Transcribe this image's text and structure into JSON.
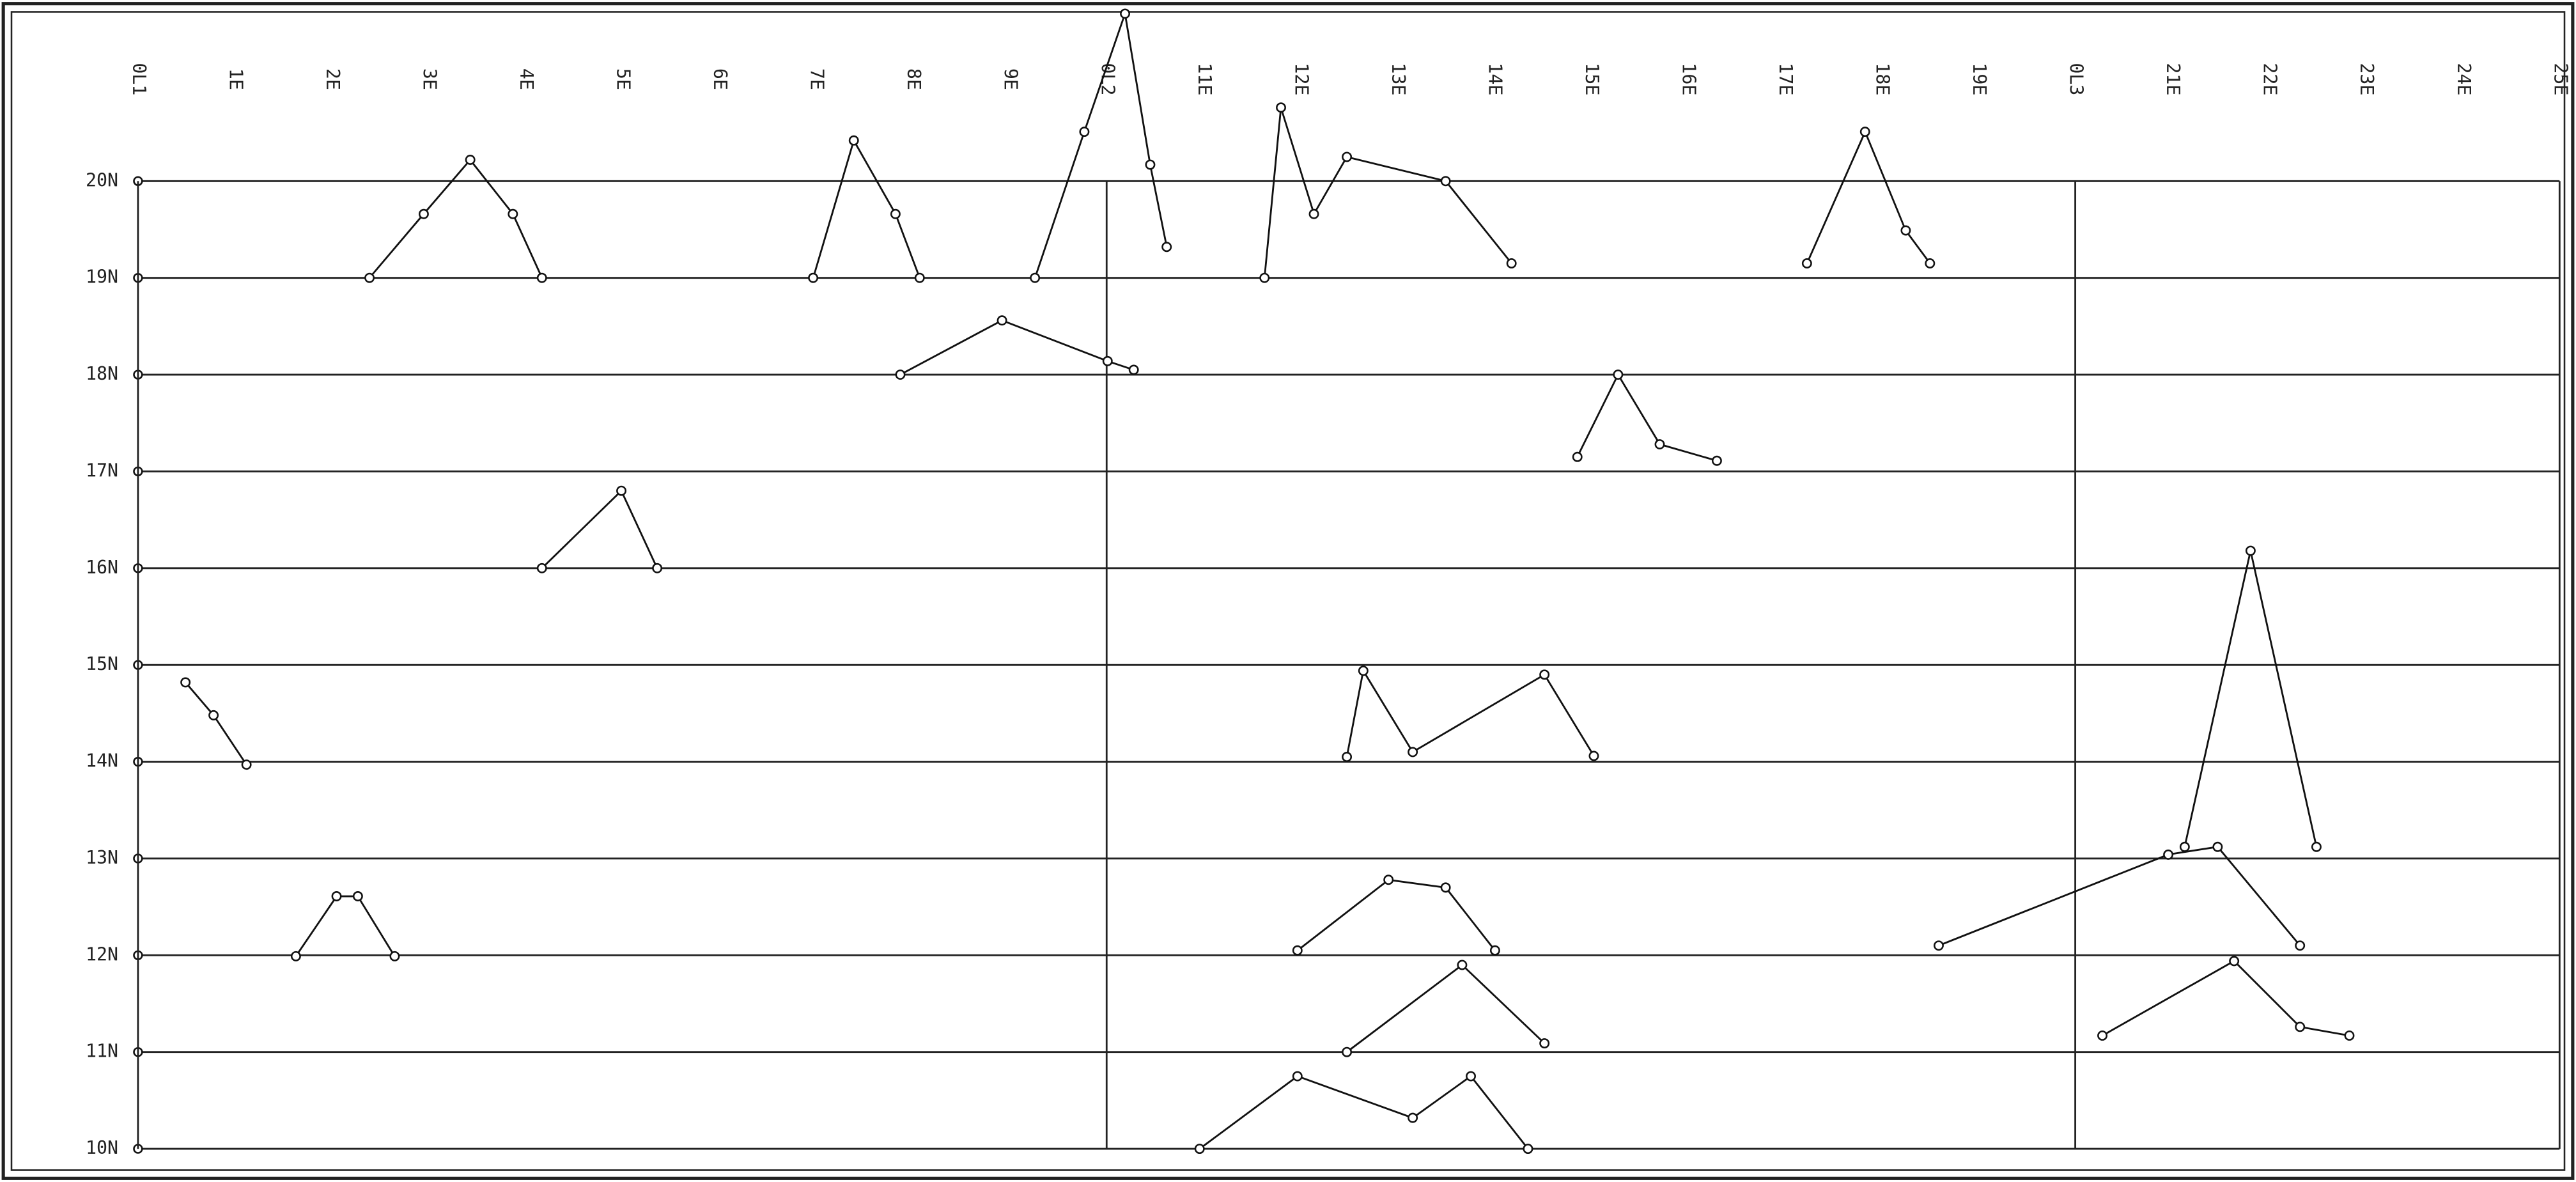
{
  "chart_data": {
    "type": "line",
    "color": "#111111",
    "xlim": [
      0,
      25
    ],
    "ylim": [
      10,
      21.8
    ],
    "xticks": [
      {
        "value": 0,
        "label": "0L1"
      },
      {
        "value": 1,
        "label": "1E"
      },
      {
        "value": 2,
        "label": "2E"
      },
      {
        "value": 3,
        "label": "3E"
      },
      {
        "value": 4,
        "label": "4E"
      },
      {
        "value": 5,
        "label": "5E"
      },
      {
        "value": 6,
        "label": "6E"
      },
      {
        "value": 7,
        "label": "7E"
      },
      {
        "value": 8,
        "label": "8E"
      },
      {
        "value": 9,
        "label": "9E"
      },
      {
        "value": 10,
        "label": "0L2"
      },
      {
        "value": 11,
        "label": "11E"
      },
      {
        "value": 12,
        "label": "12E"
      },
      {
        "value": 13,
        "label": "13E"
      },
      {
        "value": 14,
        "label": "14E"
      },
      {
        "value": 15,
        "label": "15E"
      },
      {
        "value": 16,
        "label": "16E"
      },
      {
        "value": 17,
        "label": "17E"
      },
      {
        "value": 18,
        "label": "18E"
      },
      {
        "value": 19,
        "label": "19E"
      },
      {
        "value": 20,
        "label": "0L3"
      },
      {
        "value": 21,
        "label": "21E"
      },
      {
        "value": 22,
        "label": "22E"
      },
      {
        "value": 23,
        "label": "23E"
      },
      {
        "value": 24,
        "label": "24E"
      },
      {
        "value": 25,
        "label": "25E"
      }
    ],
    "yticks": [
      {
        "value": 10,
        "label": "10N"
      },
      {
        "value": 11,
        "label": "11N"
      },
      {
        "value": 12,
        "label": "12N"
      },
      {
        "value": 13,
        "label": "13N"
      },
      {
        "value": 14,
        "label": "14N"
      },
      {
        "value": 15,
        "label": "15N"
      },
      {
        "value": 16,
        "label": "16N"
      },
      {
        "value": 17,
        "label": "17N"
      },
      {
        "value": 18,
        "label": "18N"
      },
      {
        "value": 19,
        "label": "19N"
      },
      {
        "value": 20,
        "label": "20N"
      }
    ],
    "series": [
      {
        "x": [
          2.39,
          2.95,
          3.43,
          3.87,
          4.17
        ],
        "values": [
          19.0,
          19.66,
          20.22,
          19.66,
          19.0
        ]
      },
      {
        "x": [
          9.26,
          9.77,
          10.19,
          10.45,
          10.62
        ],
        "values": [
          19.0,
          20.51,
          21.73,
          20.17,
          19.32
        ]
      },
      {
        "x": [
          6.97,
          7.39,
          7.82,
          8.07
        ],
        "values": [
          19.0,
          20.42,
          19.66,
          19.0
        ]
      },
      {
        "x": [
          11.63,
          11.8,
          12.14,
          12.48,
          13.5,
          14.18
        ],
        "values": [
          19.0,
          20.76,
          19.66,
          20.25,
          20.0,
          19.15
        ]
      },
      {
        "x": [
          17.23,
          17.83,
          18.25,
          18.5
        ],
        "values": [
          19.15,
          20.51,
          19.49,
          19.15
        ]
      },
      {
        "x": [
          7.87,
          8.92,
          10.01,
          10.28
        ],
        "values": [
          18.0,
          18.56,
          18.14,
          18.05
        ]
      },
      {
        "x": [
          14.86,
          15.28,
          15.71,
          16.3
        ],
        "values": [
          17.15,
          18.0,
          17.28,
          17.11
        ]
      },
      {
        "x": [
          4.17,
          4.99,
          5.36
        ],
        "values": [
          16.0,
          16.8,
          16.0
        ]
      },
      {
        "x": [
          12.48,
          12.65,
          13.16,
          14.52,
          15.03
        ],
        "values": [
          14.05,
          14.94,
          14.1,
          14.9,
          14.06
        ]
      },
      {
        "x": [
          21.13,
          21.81,
          22.49
        ],
        "values": [
          13.12,
          16.18,
          13.12
        ]
      },
      {
        "x": [
          11.97,
          12.91,
          13.5,
          14.01
        ],
        "values": [
          12.05,
          12.78,
          12.7,
          12.05
        ]
      },
      {
        "x": [
          12.48,
          13.67,
          14.52
        ],
        "values": [
          11.0,
          11.9,
          11.09
        ]
      },
      {
        "x": [
          10.96,
          11.97,
          13.16,
          13.76,
          14.35
        ],
        "values": [
          10.0,
          10.75,
          10.32,
          10.75,
          10.0
        ]
      },
      {
        "x": [
          18.59,
          20.96,
          21.47,
          22.32
        ],
        "values": [
          12.1,
          13.04,
          13.12,
          12.1
        ]
      },
      {
        "x": [
          20.28,
          21.64,
          22.32,
          22.83
        ],
        "values": [
          11.17,
          11.94,
          11.26,
          11.17
        ]
      },
      {
        "x": [
          0.49,
          0.78,
          1.12
        ],
        "values": [
          14.82,
          14.48,
          13.97
        ]
      },
      {
        "x": [
          1.63,
          2.05,
          2.27,
          2.65
        ],
        "values": [
          11.99,
          12.61,
          12.61,
          11.99
        ]
      }
    ]
  }
}
